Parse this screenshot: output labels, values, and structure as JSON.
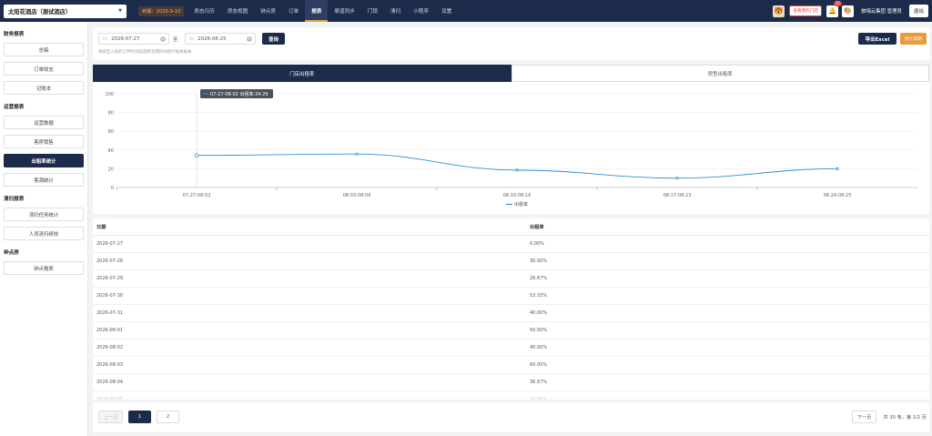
{
  "header": {
    "hotel_name": "太阳花酒店（测试酒店）",
    "expire_label": "到期：2026-9-10",
    "nav": [
      "房态日历",
      "房态视图",
      "钟点房",
      "订单",
      "报表",
      "渠道同步",
      "门锁",
      "清扫",
      "小程序",
      "设置"
    ],
    "active_nav": "报表",
    "store_button": "查看我的门店",
    "notification_count": "15",
    "user_name": "旅嗨云集团 管理员",
    "logout_label": "退出"
  },
  "sidebar": {
    "groups": [
      {
        "title": "财务报表",
        "items": [
          "总稿",
          "订单收支",
          "记账本"
        ]
      },
      {
        "title": "运营报表",
        "items": [
          "运营数据",
          "客房销售",
          "出租率统计",
          "客源统计"
        ]
      },
      {
        "title": "清扫报表",
        "items": [
          "清扫任务统计",
          "人员清扫绩效"
        ]
      },
      {
        "title": "钟点房",
        "items": [
          "钟点报表"
        ]
      }
    ],
    "active_item": "出租率统计"
  },
  "filter": {
    "start_date": "2026-07-27",
    "end_date": "2026-08-25",
    "to_label": "至",
    "query_label": "查询",
    "hint": "搜索型入住的订单时间段选择/出租时间统计报表报表",
    "export_label": "导出Excel",
    "explain_label": "统计说明"
  },
  "tabs": [
    "门店出租率",
    "房型出租率"
  ],
  "active_tab": "门店出租率",
  "chart_data": {
    "type": "line",
    "categories": [
      "07-27-08-02",
      "08-03-08-09",
      "08-10-08-16",
      "08-17-08-23",
      "08-24-08-25"
    ],
    "series": [
      {
        "name": "出租率",
        "values": [
          34.29,
          35.71,
          18.57,
          10.0,
          20.0
        ]
      }
    ],
    "ylim": [
      0,
      100
    ],
    "yticks": [
      0,
      20,
      40,
      60,
      80,
      100
    ],
    "tooltip": {
      "category": "07-27-08-02",
      "text": "07-27-08-02 出租率:34.29"
    },
    "legend": "bottom",
    "grid": true,
    "color": "#2f8fcf"
  },
  "table": {
    "headers": [
      "日期",
      "出租率"
    ],
    "rows": [
      {
        "date": "2026-07-27",
        "rate": "0.00%"
      },
      {
        "date": "2026-07-28",
        "rate": "30.00%"
      },
      {
        "date": "2026-07-29",
        "rate": "26.67%"
      },
      {
        "date": "2026-07-30",
        "rate": "53.33%"
      },
      {
        "date": "2026-07-31",
        "rate": "40.00%"
      },
      {
        "date": "2026-08-01",
        "rate": "50.00%"
      },
      {
        "date": "2026-08-02",
        "rate": "40.00%"
      },
      {
        "date": "2026-08-03",
        "rate": "60.00%"
      },
      {
        "date": "2026-08-04",
        "rate": "36.67%"
      },
      {
        "date": "2026-08-05",
        "rate": "10.00%"
      }
    ]
  },
  "pagination": {
    "prev_label": "上一页",
    "pages": [
      "1",
      "2"
    ],
    "current_page": "1",
    "next_label": "下一页",
    "summary": "共 30 条，第 1/2 页"
  }
}
